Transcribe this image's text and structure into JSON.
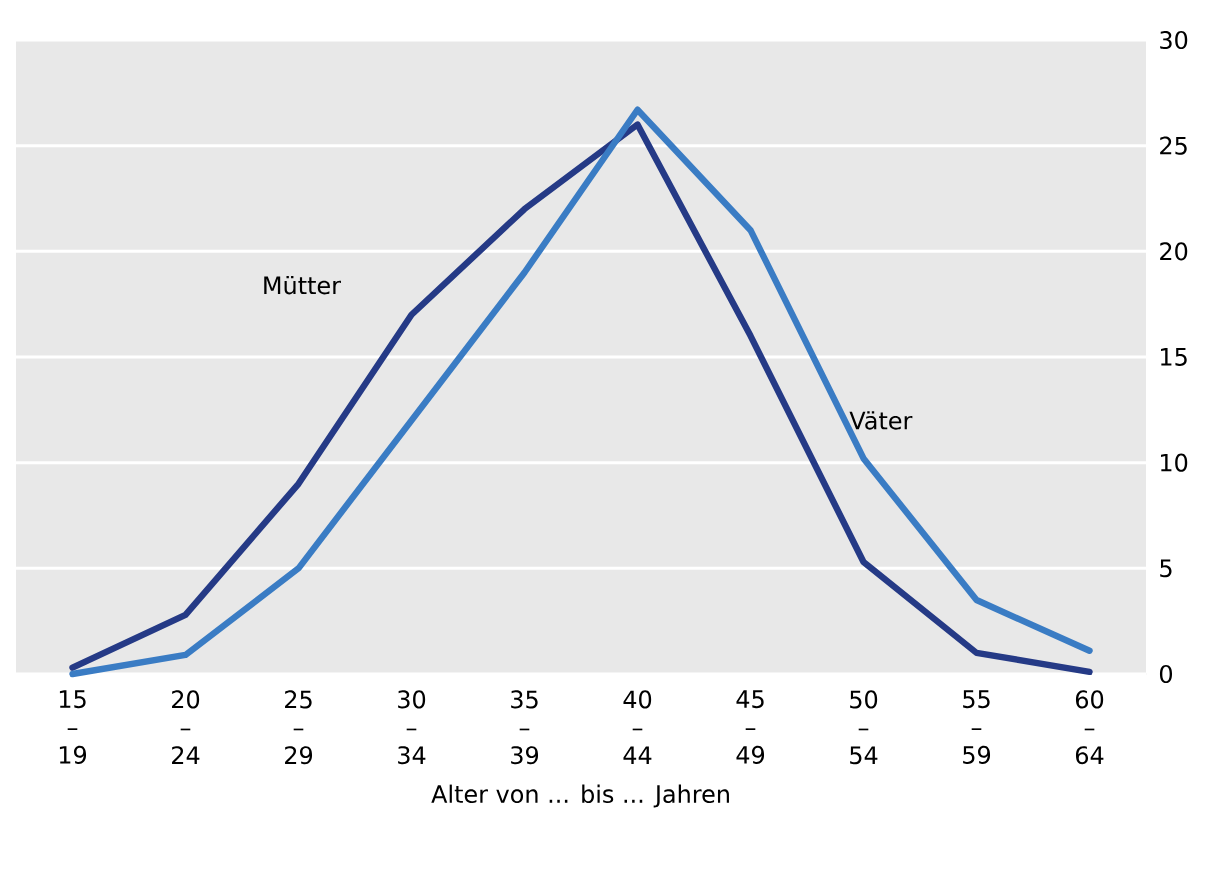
{
  "chart_data": {
    "type": "line",
    "xlabel": "Alter von ... bis ... Jahren",
    "categories": [
      "15 – 19",
      "20 – 24",
      "25 – 29",
      "30 – 34",
      "35 – 39",
      "40 – 44",
      "45 – 49",
      "50 – 54",
      "55 – 59",
      "60 – 64"
    ],
    "series": [
      {
        "name": "Mütter",
        "color": "#253a86",
        "values": [
          0.3,
          2.8,
          9,
          17,
          22,
          26,
          16,
          5.3,
          1,
          0.1
        ]
      },
      {
        "name": "Väter",
        "color": "#3a7cc4",
        "values": [
          0,
          0.9,
          5,
          12,
          19,
          26.7,
          21,
          10.2,
          3.5,
          1.1
        ]
      }
    ],
    "ylim": [
      0,
      30
    ],
    "yticks": [
      0,
      5,
      10,
      15,
      20,
      25,
      30
    ],
    "grid": "y",
    "legend": false,
    "marker": "none",
    "line_style": "solid"
  }
}
